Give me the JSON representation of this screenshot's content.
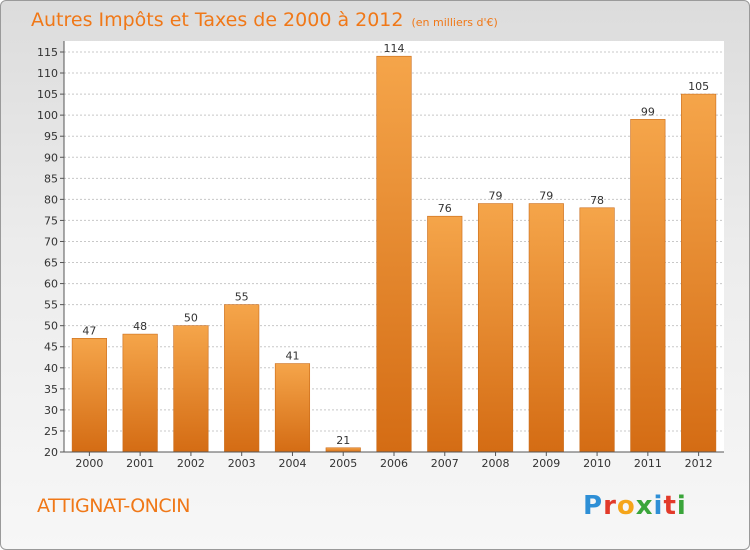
{
  "title": "Autres Impôts et Taxes de 2000 à 2012",
  "subtitle": "(en milliers d'€)",
  "city": "ATTIGNAT-ONCIN",
  "logo": "Proxiti",
  "colors": {
    "bar_top": "#f5a54a",
    "bar_bottom": "#d46c14",
    "title": "#f07818"
  },
  "chart_data": {
    "type": "bar",
    "title": "Autres Impôts et Taxes de 2000 à 2012",
    "subtitle": "(en milliers d'€)",
    "categories": [
      "2000",
      "2001",
      "2002",
      "2003",
      "2004",
      "2005",
      "2006",
      "2007",
      "2008",
      "2009",
      "2010",
      "2011",
      "2012"
    ],
    "values": [
      47,
      48,
      50,
      55,
      41,
      21,
      114,
      76,
      79,
      79,
      78,
      99,
      105
    ],
    "ylim": [
      20,
      115
    ],
    "yticks": [
      20,
      25,
      30,
      35,
      40,
      45,
      50,
      55,
      60,
      65,
      70,
      75,
      80,
      85,
      90,
      95,
      100,
      105,
      110,
      115
    ],
    "grid": true,
    "xlabel": "",
    "ylabel": ""
  }
}
